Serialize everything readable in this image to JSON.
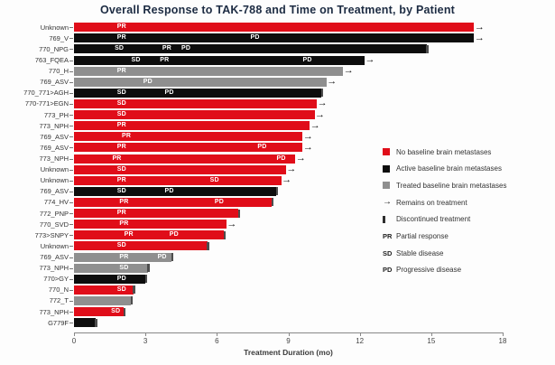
{
  "title": "Overall Response to TAK-788 and Time on Treatment, by Patient",
  "chart_data": {
    "type": "bar",
    "variant": "swimmer-plot",
    "orientation": "horizontal",
    "title": "Overall Response to TAK-788 and Time on Treatment, by Patient",
    "xlabel": "Treatment Duration (mo)",
    "xlim": [
      0,
      18
    ],
    "xticks": [
      0,
      3,
      6,
      9,
      12,
      15,
      18
    ],
    "grid": false,
    "legend_position": "right-middle",
    "group_colors": {
      "no_baseline": "#e00d19",
      "active_baseline": "#0d0d0d",
      "treated_baseline": "#8f8f8f"
    },
    "patients": [
      {
        "label": "Unknown",
        "group": "no_baseline",
        "duration_mo": 16.8,
        "end": "ongoing",
        "responses": [
          {
            "code": "PR",
            "mo": 2.0
          }
        ]
      },
      {
        "label": "769_V",
        "group": "active_baseline",
        "duration_mo": 16.8,
        "end": "ongoing",
        "responses": [
          {
            "code": "PR",
            "mo": 2.0
          },
          {
            "code": "PD",
            "mo": 7.6
          }
        ]
      },
      {
        "label": "770_NPG",
        "group": "active_baseline",
        "duration_mo": 14.8,
        "end": "discontinued",
        "responses": [
          {
            "code": "SD",
            "mo": 1.9
          },
          {
            "code": "PR",
            "mo": 3.9
          },
          {
            "code": "PD",
            "mo": 4.7
          }
        ]
      },
      {
        "label": "763_FQEA",
        "group": "active_baseline",
        "duration_mo": 12.2,
        "end": "ongoing",
        "responses": [
          {
            "code": "SD",
            "mo": 2.6
          },
          {
            "code": "PR",
            "mo": 3.8
          },
          {
            "code": "PD",
            "mo": 9.8
          }
        ]
      },
      {
        "label": "770_H",
        "group": "treated_baseline",
        "duration_mo": 11.3,
        "end": "ongoing",
        "responses": [
          {
            "code": "PR",
            "mo": 2.0
          }
        ]
      },
      {
        "label": "769_ASV",
        "group": "treated_baseline",
        "duration_mo": 10.6,
        "end": "ongoing",
        "responses": [
          {
            "code": "PD",
            "mo": 3.1
          }
        ]
      },
      {
        "label": "770_771>AGH",
        "group": "active_baseline",
        "duration_mo": 10.4,
        "end": "discontinued",
        "responses": [
          {
            "code": "SD",
            "mo": 2.0
          },
          {
            "code": "PD",
            "mo": 4.0
          }
        ]
      },
      {
        "label": "770-771>EGN",
        "group": "no_baseline",
        "duration_mo": 10.2,
        "end": "ongoing",
        "responses": [
          {
            "code": "SD",
            "mo": 2.0
          }
        ]
      },
      {
        "label": "773_PH",
        "group": "no_baseline",
        "duration_mo": 10.1,
        "end": "ongoing",
        "responses": [
          {
            "code": "SD",
            "mo": 2.0
          }
        ]
      },
      {
        "label": "773_NPH",
        "group": "no_baseline",
        "duration_mo": 9.9,
        "end": "ongoing",
        "responses": [
          {
            "code": "PR",
            "mo": 2.0
          }
        ]
      },
      {
        "label": "769_ASV",
        "group": "no_baseline",
        "duration_mo": 9.6,
        "end": "ongoing",
        "responses": [
          {
            "code": "PR",
            "mo": 2.2
          }
        ]
      },
      {
        "label": "769_ASV",
        "group": "no_baseline",
        "duration_mo": 9.6,
        "end": "ongoing",
        "responses": [
          {
            "code": "PR",
            "mo": 2.0
          },
          {
            "code": "PD",
            "mo": 7.9
          }
        ]
      },
      {
        "label": "773_NPH",
        "group": "no_baseline",
        "duration_mo": 9.3,
        "end": "ongoing",
        "responses": [
          {
            "code": "PR",
            "mo": 1.8
          },
          {
            "code": "PD",
            "mo": 8.7
          }
        ]
      },
      {
        "label": "Unknown",
        "group": "no_baseline",
        "duration_mo": 8.9,
        "end": "ongoing",
        "responses": [
          {
            "code": "SD",
            "mo": 2.0
          }
        ]
      },
      {
        "label": "Unknown",
        "group": "no_baseline",
        "duration_mo": 8.7,
        "end": "ongoing",
        "responses": [
          {
            "code": "PR",
            "mo": 2.0
          },
          {
            "code": "SD",
            "mo": 5.9
          }
        ]
      },
      {
        "label": "769_ASV",
        "group": "active_baseline",
        "duration_mo": 8.5,
        "end": "discontinued",
        "responses": [
          {
            "code": "SD",
            "mo": 2.0
          },
          {
            "code": "PD",
            "mo": 4.0
          }
        ]
      },
      {
        "label": "774_HV",
        "group": "no_baseline",
        "duration_mo": 8.3,
        "end": "discontinued",
        "responses": [
          {
            "code": "PR",
            "mo": 2.1
          },
          {
            "code": "PD",
            "mo": 6.1
          }
        ]
      },
      {
        "label": "772_PNP",
        "group": "no_baseline",
        "duration_mo": 6.9,
        "end": "discontinued",
        "responses": [
          {
            "code": "PR",
            "mo": 2.0
          }
        ]
      },
      {
        "label": "770_SVD",
        "group": "no_baseline",
        "duration_mo": 6.4,
        "end": "ongoing",
        "responses": [
          {
            "code": "PR",
            "mo": 2.1
          }
        ]
      },
      {
        "label": "773>SNPY",
        "group": "no_baseline",
        "duration_mo": 6.3,
        "end": "discontinued",
        "responses": [
          {
            "code": "PR",
            "mo": 2.3
          },
          {
            "code": "PD",
            "mo": 4.2
          }
        ]
      },
      {
        "label": "Unknown",
        "group": "no_baseline",
        "duration_mo": 5.6,
        "end": "discontinued",
        "responses": [
          {
            "code": "SD",
            "mo": 2.0
          }
        ]
      },
      {
        "label": "769_ASV",
        "group": "treated_baseline",
        "duration_mo": 4.1,
        "end": "discontinued",
        "responses": [
          {
            "code": "PR",
            "mo": 2.1
          },
          {
            "code": "PD",
            "mo": 3.7
          }
        ]
      },
      {
        "label": "773_NPH",
        "group": "treated_baseline",
        "duration_mo": 3.1,
        "end": "discontinued",
        "responses": [
          {
            "code": "SD",
            "mo": 2.1
          }
        ]
      },
      {
        "label": "770>GY",
        "group": "active_baseline",
        "duration_mo": 3.0,
        "end": "discontinued",
        "responses": [
          {
            "code": "PD",
            "mo": 2.0
          }
        ]
      },
      {
        "label": "770_N",
        "group": "no_baseline",
        "duration_mo": 2.5,
        "end": "discontinued",
        "responses": [
          {
            "code": "SD",
            "mo": 2.0
          }
        ]
      },
      {
        "label": "772_T",
        "group": "treated_baseline",
        "duration_mo": 2.4,
        "end": "discontinued",
        "responses": []
      },
      {
        "label": "773_NPH",
        "group": "no_baseline",
        "duration_mo": 2.1,
        "end": "discontinued",
        "responses": [
          {
            "code": "SD",
            "mo": 1.75
          }
        ]
      },
      {
        "label": "G779F",
        "group": "active_baseline",
        "duration_mo": 0.9,
        "end": "discontinued",
        "responses": []
      }
    ],
    "legend": [
      {
        "type": "swatch",
        "color_key": "no_baseline",
        "label": "No baseline brain metastases"
      },
      {
        "type": "swatch",
        "color_key": "active_baseline",
        "label": "Active baseline brain metastases"
      },
      {
        "type": "swatch",
        "color_key": "treated_baseline",
        "label": "Treated baseline brain metastases"
      },
      {
        "type": "arrow",
        "label": "Remains on treatment"
      },
      {
        "type": "tick",
        "label": "Discontinued treatment"
      },
      {
        "type": "text",
        "symbol": "PR",
        "label": "Partial response"
      },
      {
        "type": "text",
        "symbol": "SD",
        "label": "Stable disease"
      },
      {
        "type": "text",
        "symbol": "PD",
        "label": "Progressive disease"
      }
    ]
  },
  "colors": {
    "title": "#1c2b42",
    "axis": "#888888",
    "tick_label": "#444444",
    "row_label": "#333333",
    "bar_label": "#ffffff",
    "arrow": "#1a1a1a",
    "discontinued_tick": "#4d4d4d",
    "background": "#fdfdfd"
  }
}
